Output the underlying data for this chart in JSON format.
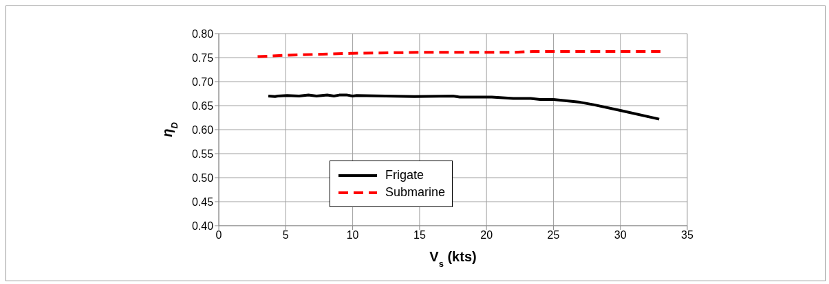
{
  "chart_data": {
    "type": "line",
    "xlabel": "V$_{s}$ (kts)",
    "ylabel": "η$_{D}$",
    "xlim": [
      0,
      35
    ],
    "xticks": [
      0,
      5,
      10,
      15,
      20,
      25,
      30,
      35
    ],
    "ylim": [
      0.4,
      0.8
    ],
    "yticks": [
      {
        "value": 0.4,
        "label": "0.40"
      },
      {
        "value": 0.45,
        "label": "0.45"
      },
      {
        "value": 0.5,
        "label": "0.50"
      },
      {
        "value": 0.55,
        "label": "0.55"
      },
      {
        "value": 0.6,
        "label": "0.60"
      },
      {
        "value": 0.65,
        "label": "0.65"
      },
      {
        "value": 0.7,
        "label": "0.70"
      },
      {
        "value": 0.75,
        "label": "0.75"
      },
      {
        "value": 0.8,
        "label": "0.80"
      }
    ],
    "grid": true,
    "legend": "bottom",
    "marker": "none",
    "series": [
      {
        "name": "Frigate",
        "color": "#000000",
        "line_style": "solid",
        "x": [
          3.7,
          4.2,
          4.4,
          5.1,
          6,
          6.7,
          7.3,
          8.1,
          8.6,
          9,
          9.6,
          10,
          10.3,
          14.6,
          17.5,
          18,
          20.4,
          22,
          23.3,
          24,
          25,
          27,
          28,
          30,
          32.9
        ],
        "values": [
          0.67,
          0.669,
          0.67,
          0.671,
          0.67,
          0.672,
          0.67,
          0.672,
          0.67,
          0.672,
          0.672,
          0.67,
          0.671,
          0.669,
          0.67,
          0.668,
          0.668,
          0.665,
          0.665,
          0.663,
          0.663,
          0.657,
          0.652,
          0.64,
          0.622
        ]
      },
      {
        "name": "Submarine",
        "color": "#ff0000",
        "line_style": "dashed",
        "x": [
          2.9,
          5,
          10,
          15,
          20,
          22,
          23.5,
          28,
          33
        ],
        "values": [
          0.752,
          0.755,
          0.759,
          0.761,
          0.761,
          0.761,
          0.763,
          0.763,
          0.763
        ]
      }
    ]
  }
}
